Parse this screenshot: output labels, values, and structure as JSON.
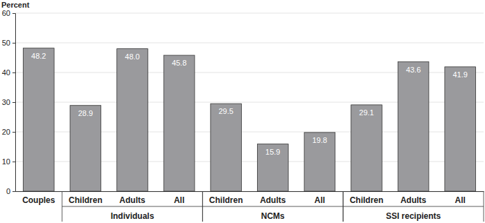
{
  "chart_data": {
    "type": "bar",
    "y_label": "Percent",
    "categories": [
      "Couples",
      "Children",
      "Adults",
      "All",
      "Children",
      "Adults",
      "All",
      "Children",
      "Adults",
      "All"
    ],
    "groups": [
      null,
      "Individuals",
      "Individuals",
      "Individuals",
      "NCMs",
      "NCMs",
      "NCMs",
      "SSI recipients",
      "SSI recipients",
      "SSI recipients"
    ],
    "values": [
      48.2,
      28.9,
      48.0,
      45.8,
      29.5,
      15.9,
      19.8,
      29.1,
      43.6,
      41.9
    ],
    "value_labels": [
      "48.2",
      "28.9",
      "48.0",
      "45.8",
      "29.5",
      "15.9",
      "19.8",
      "29.1",
      "43.6",
      "41.9"
    ],
    "color": "#9a9a9d",
    "ylim": [
      0,
      60
    ],
    "yticks": [
      0,
      10,
      20,
      30,
      40,
      50,
      60
    ],
    "grid": true,
    "data_labels": true
  }
}
